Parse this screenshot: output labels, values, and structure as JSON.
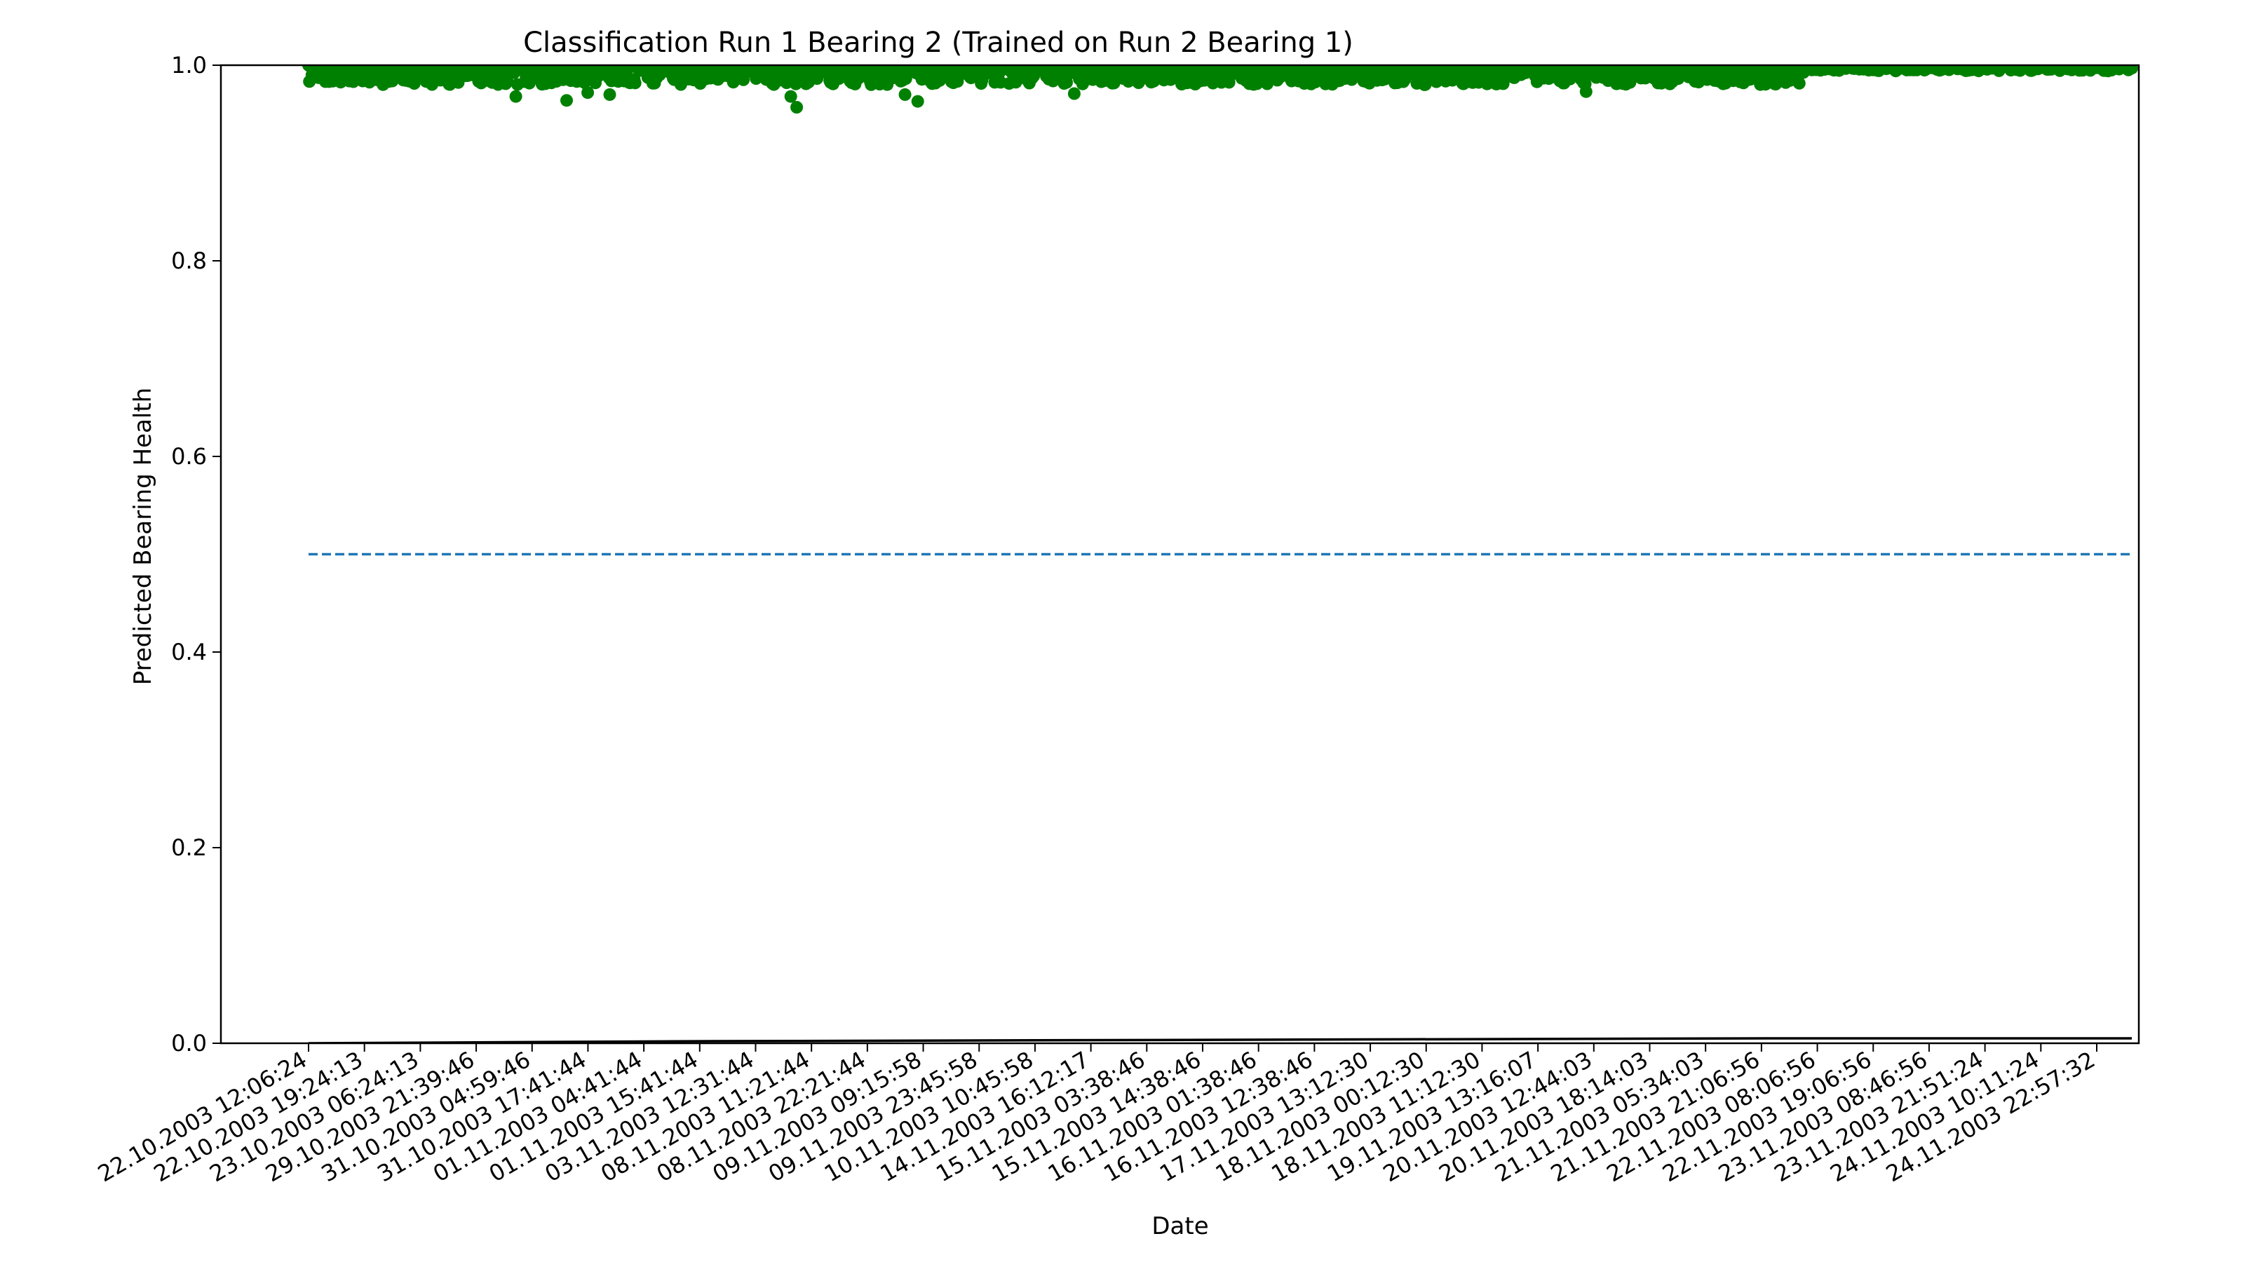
{
  "chart_data": {
    "type": "scatter",
    "title": "Classification Run 1 Bearing 2 (Trained on Run 2 Bearing 1)",
    "xlabel": "Date",
    "ylabel": "Predicted Bearing Health",
    "ylim": [
      0.0,
      1.0
    ],
    "yticks": [
      0.0,
      0.2,
      0.4,
      0.6,
      0.8,
      1.0
    ],
    "ytick_labels": [
      "0.0",
      "0.2",
      "0.4",
      "0.6",
      "0.8",
      "1.0"
    ],
    "xtick_labels": [
      "22.10.2003 12:06:24",
      "22.10.2003 19:24:13",
      "23.10.2003 06:24:13",
      "29.10.2003 21:39:46",
      "31.10.2003 04:59:46",
      "31.10.2003 17:41:44",
      "01.11.2003 04:41:44",
      "01.11.2003 15:41:44",
      "03.11.2003 12:31:44",
      "08.11.2003 11:21:44",
      "08.11.2003 22:21:44",
      "09.11.2003 09:15:58",
      "09.11.2003 23:45:58",
      "10.11.2003 10:45:58",
      "14.11.2003 16:12:17",
      "15.11.2003 03:38:46",
      "15.11.2003 14:38:46",
      "16.11.2003 01:38:46",
      "16.11.2003 12:38:46",
      "17.11.2003 13:12:30",
      "18.11.2003 00:12:30",
      "18.11.2003 11:12:30",
      "19.11.2003 13:16:07",
      "20.11.2003 12:44:03",
      "20.11.2003 18:14:03",
      "21.11.2003 05:34:03",
      "21.11.2003 21:06:56",
      "22.11.2003 08:06:56",
      "22.11.2003 19:06:56",
      "23.11.2003 08:46:56",
      "23.11.2003 21:51:24",
      "24.11.2003 10:11:24",
      "24.11.2003 22:57:32"
    ],
    "num_samples": 2156,
    "threshold": 0.5,
    "series": [
      {
        "kind": "scatter",
        "color": "#008000",
        "typical_range": [
          0.98,
          1.0
        ],
        "low_outliers": [
          {
            "index": 245,
            "value": 0.968
          },
          {
            "index": 305,
            "value": 0.964
          },
          {
            "index": 330,
            "value": 0.972
          },
          {
            "index": 356,
            "value": 0.97
          },
          {
            "index": 570,
            "value": 0.968
          },
          {
            "index": 577,
            "value": 0.957
          },
          {
            "index": 705,
            "value": 0.97
          },
          {
            "index": 720,
            "value": 0.963
          },
          {
            "index": 905,
            "value": 0.971
          },
          {
            "index": 1510,
            "value": 0.973
          }
        ]
      },
      {
        "kind": "line",
        "color": "#1f77b4",
        "style": "dashed",
        "value": 0.5
      },
      {
        "kind": "line",
        "color": "#000000",
        "style": "solid",
        "values": [
          0.0,
          0.002,
          0.003,
          0.004,
          0.005,
          0.005
        ]
      }
    ],
    "grid": false,
    "legend": "none"
  }
}
